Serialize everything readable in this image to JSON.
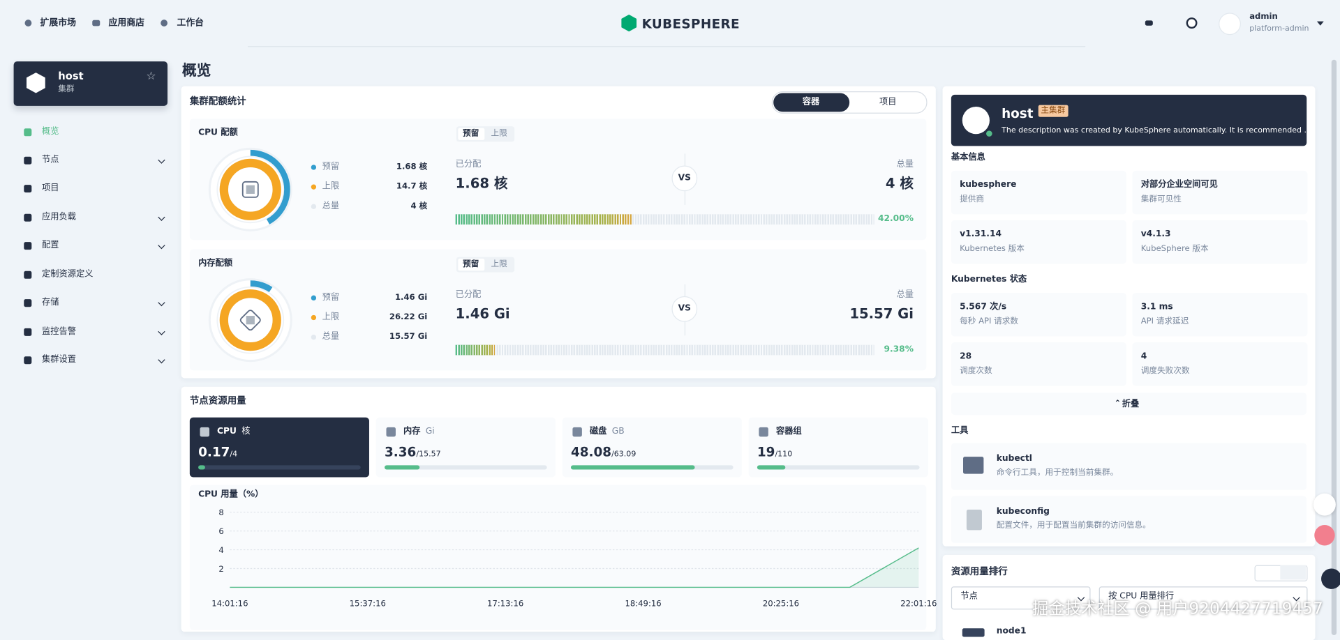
{
  "nav": {
    "links": [
      "扩展市场",
      "应用商店",
      "工作台"
    ],
    "logo": "KUBESPHERE",
    "user": "admin",
    "role": "platform-admin"
  },
  "sidebar": {
    "cluster": "host",
    "cluster_label": "集群",
    "items": [
      "概览",
      "节点",
      "项目",
      "应用负载",
      "配置",
      "定制资源定义",
      "存储",
      "监控告警",
      "集群设置"
    ]
  },
  "page_title": "概览",
  "quota": {
    "title": "集群配额统计",
    "tabs": [
      "容器",
      "项目"
    ],
    "sections": [
      {
        "title": "CPU 配额",
        "toggle": [
          "预留",
          "上限"
        ],
        "legend": [
          {
            "name": "预留",
            "value": 1.68,
            "label": "1.68 核",
            "color": "#329dce"
          },
          {
            "name": "上限",
            "value": 14.7,
            "label": "14.7 核",
            "color": "#f5a623"
          },
          {
            "name": "总量",
            "value": 4,
            "label": "4 核",
            "color": "#e3e9ef"
          }
        ],
        "allocated_label": "已分配",
        "allocated": "1.68 核",
        "vs": "VS",
        "total_label": "总量",
        "total": "4 核",
        "percent": 42,
        "percent_label": "42.00%"
      },
      {
        "title": "内存配额",
        "toggle": [
          "预留",
          "上限"
        ],
        "legend": [
          {
            "name": "预留",
            "value": 1.46,
            "label": "1.46 Gi",
            "color": "#329dce"
          },
          {
            "name": "上限",
            "value": 26.22,
            "label": "26.22 Gi",
            "color": "#f5a623"
          },
          {
            "name": "总量",
            "value": 15.57,
            "label": "15.57 Gi",
            "color": "#e3e9ef"
          }
        ],
        "allocated_label": "已分配",
        "allocated": "1.46 Gi",
        "vs": "VS",
        "total_label": "总量",
        "total": "15.57 Gi",
        "percent": 9.38,
        "percent_label": "9.38%"
      }
    ]
  },
  "nodes": {
    "title": "节点资源用量",
    "cards": [
      {
        "name": "CPU",
        "unit": "核",
        "used": 0.17,
        "total": 4,
        "total_label": "/4"
      },
      {
        "name": "内存",
        "unit": "Gi",
        "used": 3.36,
        "total": 15.57,
        "total_label": "/15.57"
      },
      {
        "name": "磁盘",
        "unit": "GB",
        "used": 48.08,
        "total": 63.09,
        "total_label": "/63.09"
      },
      {
        "name": "容器组",
        "used": 19,
        "total": 110,
        "total_label": "/110"
      }
    ]
  },
  "chart_data": {
    "type": "line",
    "title": "CPU 用量（%）",
    "categories": [
      "14:01:16",
      null,
      "15:37:16",
      null,
      "17:13:16",
      null,
      "18:49:16",
      null,
      "20:25:16",
      null,
      "22:01:16"
    ],
    "values": [
      0,
      0,
      0,
      0,
      0,
      0,
      0,
      0,
      0,
      0,
      4.2
    ],
    "color": "#55bc8a",
    "ylim": [
      0,
      8
    ],
    "yticks": [
      2,
      4,
      6,
      8
    ],
    "grid": true
  },
  "cluster": {
    "name": "host",
    "badge": "主集群",
    "description": "The description was created by KubeSphere automatically. It is recommended ...",
    "basic_title": "基本信息",
    "basic": [
      {
        "value": "kubesphere",
        "label": "提供商"
      },
      {
        "value": "对部分企业空间可见",
        "label": "集群可见性"
      },
      {
        "value": "v1.31.14",
        "label": "Kubernetes 版本"
      },
      {
        "value": "v4.1.3",
        "label": "KubeSphere 版本"
      }
    ],
    "status_title": "Kubernetes 状态",
    "status": [
      {
        "value": "5.567 次/s",
        "label": "每秒 API 请求数"
      },
      {
        "value": "3.1 ms",
        "label": "API 请求延迟"
      },
      {
        "value": "28",
        "label": "调度次数"
      },
      {
        "value": "4",
        "label": "调度失败次数"
      }
    ],
    "fold": "折叠",
    "tools_title": "工具",
    "tools": [
      {
        "name": "kubectl",
        "desc": "命令行工具，用于控制当前集群。"
      },
      {
        "name": "kubeconfig",
        "desc": "配置文件，用于配置当前集群的访问信息。"
      }
    ]
  },
  "ranking": {
    "title": "资源用量排行",
    "selects": [
      "节点",
      "按 CPU 用量排行"
    ],
    "rows": [
      "node1"
    ]
  },
  "watermark": "掘金技术社区 @ 用户9204427719457"
}
